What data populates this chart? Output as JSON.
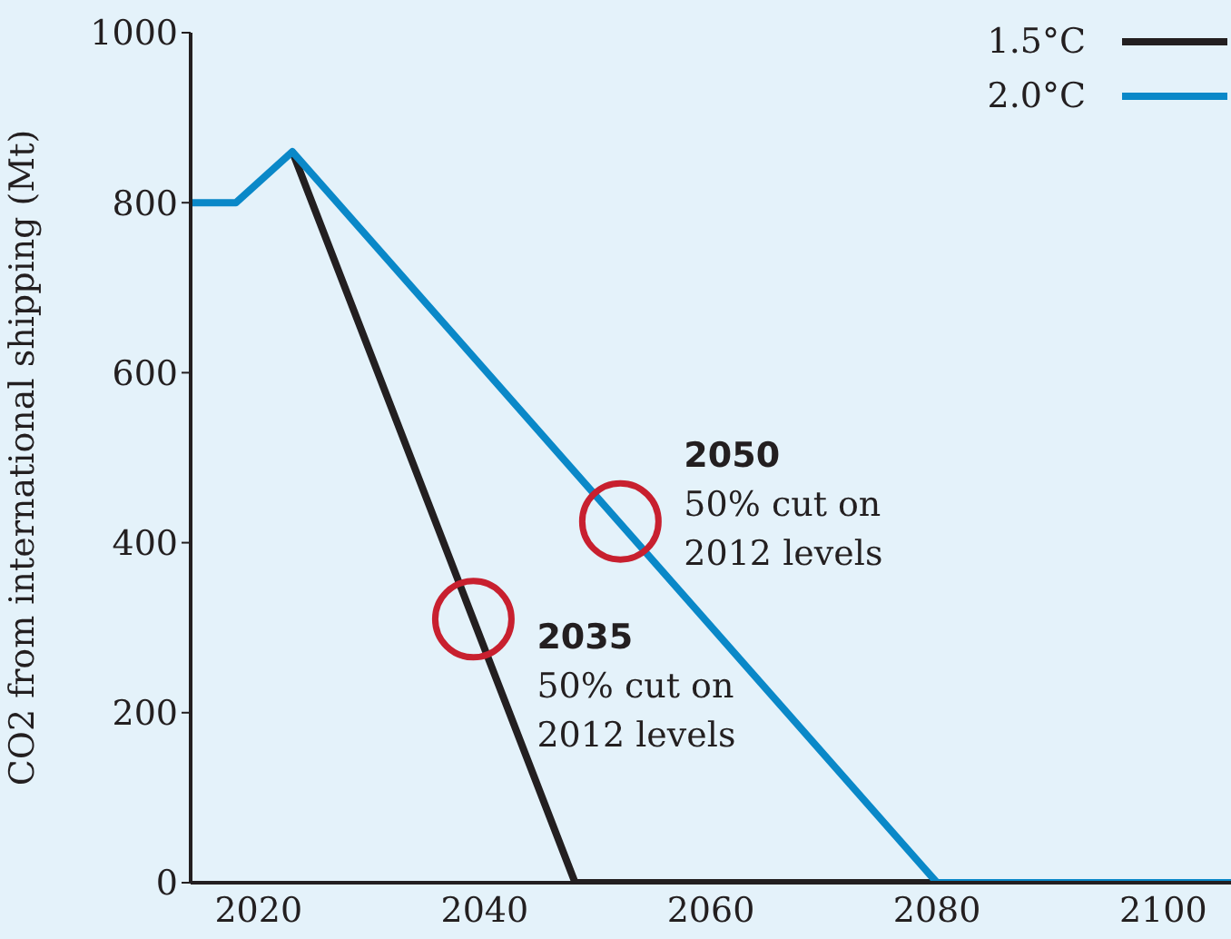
{
  "chart_data": {
    "type": "line",
    "ylabel": "CO2 from international shipping (Mt)",
    "xlim": [
      2014,
      2106
    ],
    "xticks": [
      2020,
      2040,
      2060,
      2080,
      2100
    ],
    "ylim": [
      0,
      1000
    ],
    "yticks": [
      0,
      200,
      400,
      600,
      800,
      1000
    ],
    "grid": false,
    "legend": "top right",
    "marker": "none",
    "line_style": "solid",
    "series": [
      {
        "name": "1.5°C",
        "color": "#231f20",
        "x": [
          2023,
          2048,
          2080
        ],
        "values": [
          860,
          0,
          0
        ]
      },
      {
        "name": "2.0°C",
        "color": "#0a88c8",
        "x": [
          2014,
          2018,
          2023,
          2080,
          2106
        ],
        "values": [
          800,
          800,
          860,
          0,
          0
        ]
      }
    ],
    "annotations": [
      {
        "text": "2035\n50% cut on\n2012 levels",
        "x": 2039,
        "y": 310
      },
      {
        "text": "2050\n50% cut on\n2012 levels",
        "x": 2052,
        "y": 425
      }
    ]
  }
}
